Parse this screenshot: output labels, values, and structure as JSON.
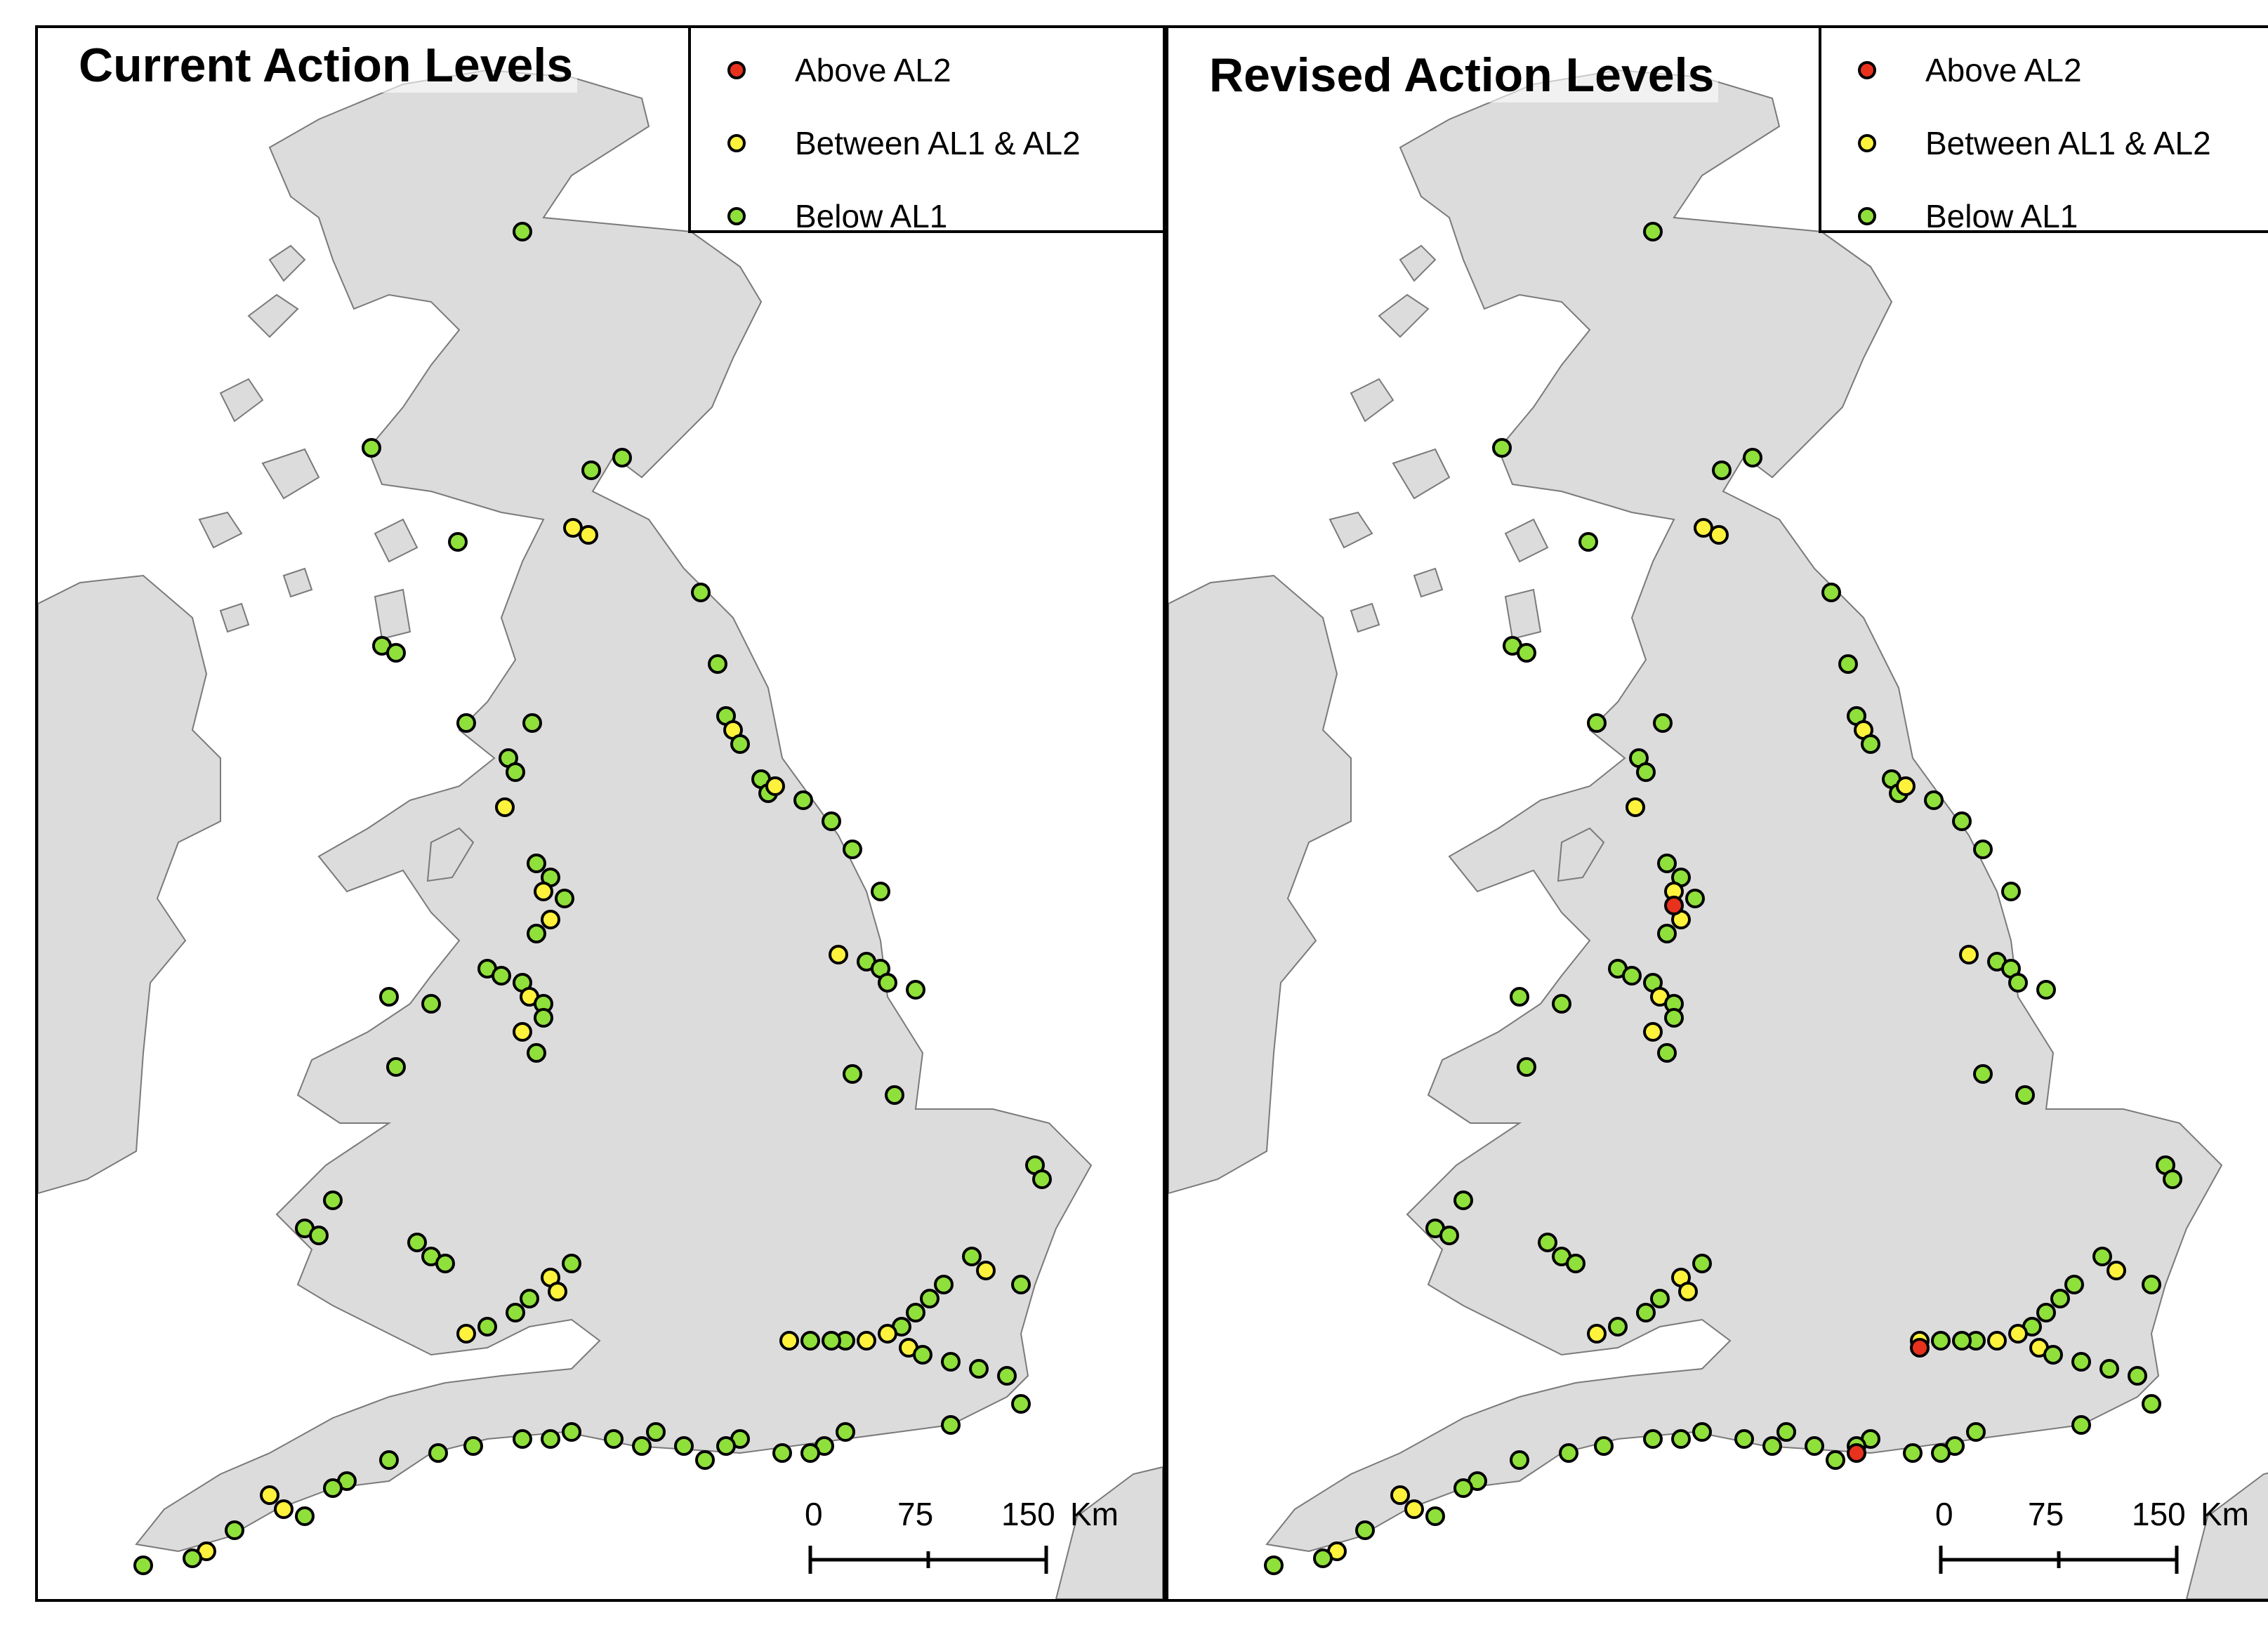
{
  "colors": {
    "land": "#dcdcdc",
    "coast": "#7a7a7a",
    "above_al2": "#e8321e",
    "between": "#fff23c",
    "below": "#8fe03a",
    "marker_edge": "#000000"
  },
  "panels": [
    {
      "title": "Current Action Levels",
      "legend": [
        {
          "label": "Above AL2",
          "color": "#e8321e"
        },
        {
          "label": "Between AL1 & AL2",
          "color": "#fff23c"
        },
        {
          "label": "Below AL1",
          "color": "#8fe03a"
        }
      ],
      "scale": {
        "ticks": [
          "0",
          "75",
          "150"
        ],
        "unit": "Km"
      }
    },
    {
      "title": "Revised Action Levels",
      "legend": [
        {
          "label": "Above AL2",
          "color": "#e8321e"
        },
        {
          "label": "Between AL1 & AL2",
          "color": "#fff23c"
        },
        {
          "label": "Below AL1",
          "color": "#8fe03a"
        }
      ],
      "scale": {
        "ticks": [
          "0",
          "75",
          "150"
        ],
        "unit": "Km"
      }
    }
  ]
}
